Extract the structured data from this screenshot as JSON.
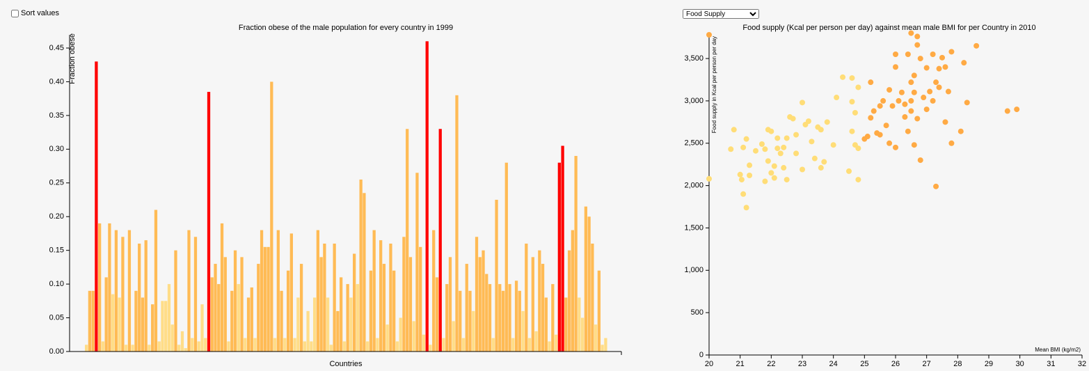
{
  "controls": {
    "sort_label": "Sort values",
    "dropdown": "Food Supply"
  },
  "chart_data": [
    {
      "type": "bar",
      "title": "Fraction obese of the male population for every country in 1999",
      "x_label": "Countries",
      "y_label": "Fraction obese",
      "ylim": [
        0,
        0.45
      ],
      "yticks": [
        {
          "value": 0,
          "label": "0.00"
        },
        0.05,
        {
          "value": 0.1,
          "label": "0.10"
        },
        0.15,
        {
          "value": 0.2,
          "label": "0.20"
        },
        0.25,
        {
          "value": 0.3,
          "label": "0.30"
        },
        0.35,
        {
          "value": 0.4,
          "label": "0.40"
        },
        0.45
      ],
      "values": [
        0.01,
        0.09,
        0.09,
        0.43,
        0.19,
        0.015,
        0.11,
        0.19,
        0.085,
        0.18,
        0.08,
        0.17,
        0.01,
        0.18,
        0.01,
        0.09,
        0.16,
        0.08,
        0.165,
        0.01,
        0.07,
        0.21,
        0.015,
        0.075,
        0.075,
        0.1,
        0.04,
        0.15,
        0.01,
        0.03,
        0.005,
        0.18,
        0.02,
        0.17,
        0.015,
        0.07,
        0.02,
        0.385,
        0.11,
        0.13,
        0.1,
        0.19,
        0.14,
        0.015,
        0.09,
        0.15,
        0.1,
        0.14,
        0.02,
        0.08,
        0.095,
        0.02,
        0.13,
        0.18,
        0.155,
        0.155,
        0.4,
        0.02,
        0.18,
        0.09,
        0.02,
        0.12,
        0.175,
        0.02,
        0.08,
        0.13,
        0.015,
        0.06,
        0.015,
        0.08,
        0.18,
        0.14,
        0.16,
        0.08,
        0.01,
        0.16,
        0.06,
        0.11,
        0.015,
        0.1,
        0.08,
        0.145,
        0.1,
        0.255,
        0.235,
        0.015,
        0.12,
        0.18,
        0.02,
        0.165,
        0.13,
        0.04,
        0.16,
        0.12,
        0.015,
        0.05,
        0.17,
        0.33,
        0.14,
        0.045,
        0.265,
        0.155,
        0.025,
        0.46,
        0.01,
        0.18,
        0.11,
        0.33,
        0.02,
        0.1,
        0.14,
        0.045,
        0.38,
        0.09,
        0.02,
        0.13,
        0.09,
        0.06,
        0.17,
        0.14,
        0.15,
        0.115,
        0.1,
        0.02,
        0.225,
        0.1,
        0.09,
        0.28,
        0.1,
        0.02,
        0.105,
        0.09,
        0.06,
        0.16,
        0.02,
        0.14,
        0.03,
        0.15,
        0.13,
        0.08,
        0.015,
        0.1,
        0.025,
        0.28,
        0.305,
        0.08,
        0.15,
        0.18,
        0.29,
        0.08,
        0.05,
        0.215,
        0.2,
        0.16,
        0.04,
        0.12,
        0.01,
        0.02
      ],
      "colors": [
        "#fd8",
        "#fb5",
        "#fb5",
        "#f00",
        "#fb5",
        "#fd8",
        "#fb5",
        "#fb5",
        "#fd8",
        "#fb5",
        "#fd8",
        "#fb5",
        "#fd8",
        "#fb5",
        "#fd8",
        "#fb5",
        "#fb5",
        "#fb5",
        "#fb5",
        "#fd8",
        "#fb5",
        "#fb5",
        "#fd8",
        "#fd8",
        "#fd8",
        "#fd8",
        "#fd8",
        "#fb5",
        "#fd8",
        "#fd8",
        "#fd8",
        "#fb5",
        "#fd8",
        "#fb5",
        "#fd8",
        "#fd8",
        "#fd8",
        "#f00",
        "#fb5",
        "#fb5",
        "#fb5",
        "#fb5",
        "#fb5",
        "#fd8",
        "#fb5",
        "#fb5",
        "#fd8",
        "#fb5",
        "#fd8",
        "#fb5",
        "#fb5",
        "#fd8",
        "#fb5",
        "#fb5",
        "#fb5",
        "#fb5",
        "#fb5",
        "#fd8",
        "#fb5",
        "#fb5",
        "#fd8",
        "#fb5",
        "#fb5",
        "#fd8",
        "#fd8",
        "#fb5",
        "#fd8",
        "#fd8",
        "#fd8",
        "#fd8",
        "#fb5",
        "#fb5",
        "#fb5",
        "#fd8",
        "#fd8",
        "#fb5",
        "#fb5",
        "#fb5",
        "#fd8",
        "#fb5",
        "#fd8",
        "#fb5",
        "#fd8",
        "#fb5",
        "#fb5",
        "#fd8",
        "#fb5",
        "#fb5",
        "#fd8",
        "#fb5",
        "#fb5",
        "#fd8",
        "#fb5",
        "#fb5",
        "#fd8",
        "#fd8",
        "#fb5",
        "#fb5",
        "#fb5",
        "#fd8",
        "#fb5",
        "#fb5",
        "#fd8",
        "#f00",
        "#fd8",
        "#fb5",
        "#fb5",
        "#f00",
        "#fd8",
        "#fb5",
        "#fb5",
        "#fd8",
        "#fb5",
        "#fb5",
        "#fd8",
        "#fb5",
        "#fb5",
        "#fd8",
        "#fb5",
        "#fb5",
        "#fb5",
        "#fb5",
        "#fb5",
        "#fd8",
        "#fb5",
        "#fb5",
        "#fb5",
        "#fb5",
        "#fb5",
        "#fd8",
        "#fb5",
        "#fb5",
        "#fd8",
        "#fb5",
        "#fd8",
        "#fb5",
        "#fd8",
        "#fb5",
        "#fb5",
        "#fb5",
        "#fd8",
        "#fb5",
        "#fd8",
        "#f00",
        "#f00",
        "#fb5",
        "#fb5",
        "#fb5",
        "#fb5",
        "#fd8",
        "#fd8",
        "#fb5",
        "#fb5",
        "#fb5",
        "#fd8",
        "#fb5",
        "#fd8",
        "#fd8"
      ]
    },
    {
      "type": "scatter",
      "title": "Food supply (Kcal per person per day) against mean male BMI for per Country in 2010",
      "x_label": "Mean BMI (kg/m2)",
      "y_label": "Food supply in Kcal per person per day",
      "xlim": [
        20,
        32
      ],
      "ylim": [
        0,
        3780
      ],
      "xticks": [
        20,
        21,
        22,
        23,
        24,
        25,
        26,
        27,
        28,
        29,
        30,
        31,
        32
      ],
      "yticks": [
        0,
        500,
        {
          "value": 1000,
          "label": "1,000"
        },
        {
          "value": 1500,
          "label": "1,500"
        },
        {
          "value": 2000,
          "label": "2,000"
        },
        {
          "value": 2500,
          "label": "2,500"
        },
        {
          "value": 3000,
          "label": "3,000"
        },
        {
          "value": 3500,
          "label": "3,500"
        }
      ],
      "x": [
        20,
        20.7,
        20.8,
        21,
        21.05,
        21.1,
        21.1,
        21.2,
        21.2,
        21.3,
        21.3,
        21.5,
        21.7,
        21.8,
        21.8,
        21.9,
        21.9,
        22,
        22,
        22.1,
        22.1,
        22.2,
        22.2,
        22.3,
        22.4,
        22.4,
        22.5,
        22.5,
        22.6,
        22.7,
        22.8,
        22.8,
        23,
        23,
        23.1,
        23.2,
        23.3,
        23.4,
        23.5,
        23.6,
        23.6,
        23.7,
        23.8,
        24,
        24.1,
        24.3,
        24.6,
        24.6,
        24.7,
        24.8,
        24.7,
        24.5,
        24.8,
        24.6,
        24.8,
        20,
        25,
        25.1,
        25.2,
        25.2,
        25.3,
        25.4,
        25.5,
        25.5,
        25.6,
        25.7,
        25.8,
        25.8,
        25.9,
        26,
        26,
        26,
        26.1,
        26.2,
        26.3,
        26.3,
        26.4,
        26.4,
        26.5,
        26.5,
        26.5,
        26.5,
        26.6,
        26.6,
        26.6,
        26.7,
        26.7,
        26.7,
        26.8,
        26.8,
        26.9,
        27,
        27,
        27.1,
        27.2,
        27.2,
        27.3,
        27.3,
        27.4,
        27.4,
        27.5,
        27.6,
        27.6,
        27.7,
        27.8,
        27.8,
        28.1,
        28.2,
        28.3,
        28.6,
        29.6,
        29.9
      ],
      "y": [
        2080,
        2430,
        2660,
        2130,
        2070,
        1900,
        2450,
        1740,
        2550,
        2120,
        2240,
        2410,
        2490,
        2430,
        2050,
        2290,
        2660,
        2150,
        2640,
        2090,
        2230,
        2440,
        2560,
        2380,
        2210,
        2450,
        2560,
        2070,
        2810,
        2790,
        2380,
        2600,
        2190,
        2980,
        2720,
        2760,
        2520,
        2320,
        2690,
        2660,
        2210,
        2280,
        2750,
        2480,
        3040,
        3280,
        2990,
        3270,
        2480,
        3160,
        2860,
        2170,
        2070,
        2640,
        2440,
        3780,
        2550,
        2580,
        2800,
        3220,
        2880,
        2620,
        2600,
        2940,
        3000,
        2710,
        3130,
        2500,
        2940,
        3400,
        3550,
        2450,
        3000,
        3100,
        2960,
        2810,
        2640,
        3550,
        3800,
        3220,
        3000,
        2880,
        3100,
        2480,
        3300,
        2790,
        3660,
        3760,
        2300,
        3500,
        3040,
        3390,
        2900,
        3110,
        3550,
        3000,
        1990,
        3220,
        3380,
        3160,
        3510,
        2750,
        3400,
        3110,
        3580,
        2500,
        2640,
        3450,
        2980,
        3650,
        2880,
        2900
      ],
      "colors": [
        "#fd7",
        "#fd7",
        "#fd7",
        "#fd7",
        "#fd7",
        "#fd7",
        "#fd7",
        "#fd7",
        "#fd7",
        "#fd7",
        "#fd7",
        "#fd7",
        "#fd7",
        "#fd7",
        "#fd7",
        "#fd7",
        "#fd7",
        "#fd7",
        "#fd7",
        "#fd7",
        "#fd7",
        "#fd7",
        "#fd7",
        "#fd7",
        "#fd7",
        "#fd7",
        "#fd7",
        "#fd7",
        "#fd7",
        "#fd7",
        "#fd7",
        "#fd7",
        "#fd7",
        "#fd7",
        "#fd7",
        "#fd7",
        "#fd7",
        "#fd7",
        "#fd7",
        "#fd7",
        "#fd7",
        "#fd7",
        "#fd7",
        "#fd7",
        "#fd7",
        "#fd7",
        "#fd7",
        "#fd7",
        "#fd7",
        "#fd7",
        "#fd7",
        "#fd7",
        "#fd7",
        "#fd7",
        "#fd7",
        "#fa4",
        "#fa4",
        "#fa4",
        "#fa4",
        "#fa4",
        "#fa4",
        "#fa4",
        "#fa4",
        "#fa4",
        "#fa4",
        "#fa4",
        "#fa4",
        "#fa4",
        "#fa4",
        "#fa4",
        "#fa4",
        "#fa4",
        "#fa4",
        "#fa4",
        "#fa4",
        "#fa4",
        "#fa4",
        "#fa4",
        "#fa4",
        "#fa4",
        "#fa4",
        "#fa4",
        "#fa4",
        "#fa4",
        "#fa4",
        "#fa4",
        "#fa4",
        "#fa4",
        "#fa4",
        "#fa4",
        "#fa4",
        "#fa4",
        "#fa4",
        "#fa4",
        "#fa4",
        "#fa4",
        "#fa4",
        "#fa4",
        "#fa4",
        "#fa4",
        "#fa4",
        "#fa4",
        "#fa4",
        "#fa4",
        "#fa4",
        "#fa4",
        "#fa4",
        "#fa4",
        "#fa4",
        "#fa4",
        "#fa4",
        "#fa4"
      ]
    }
  ]
}
